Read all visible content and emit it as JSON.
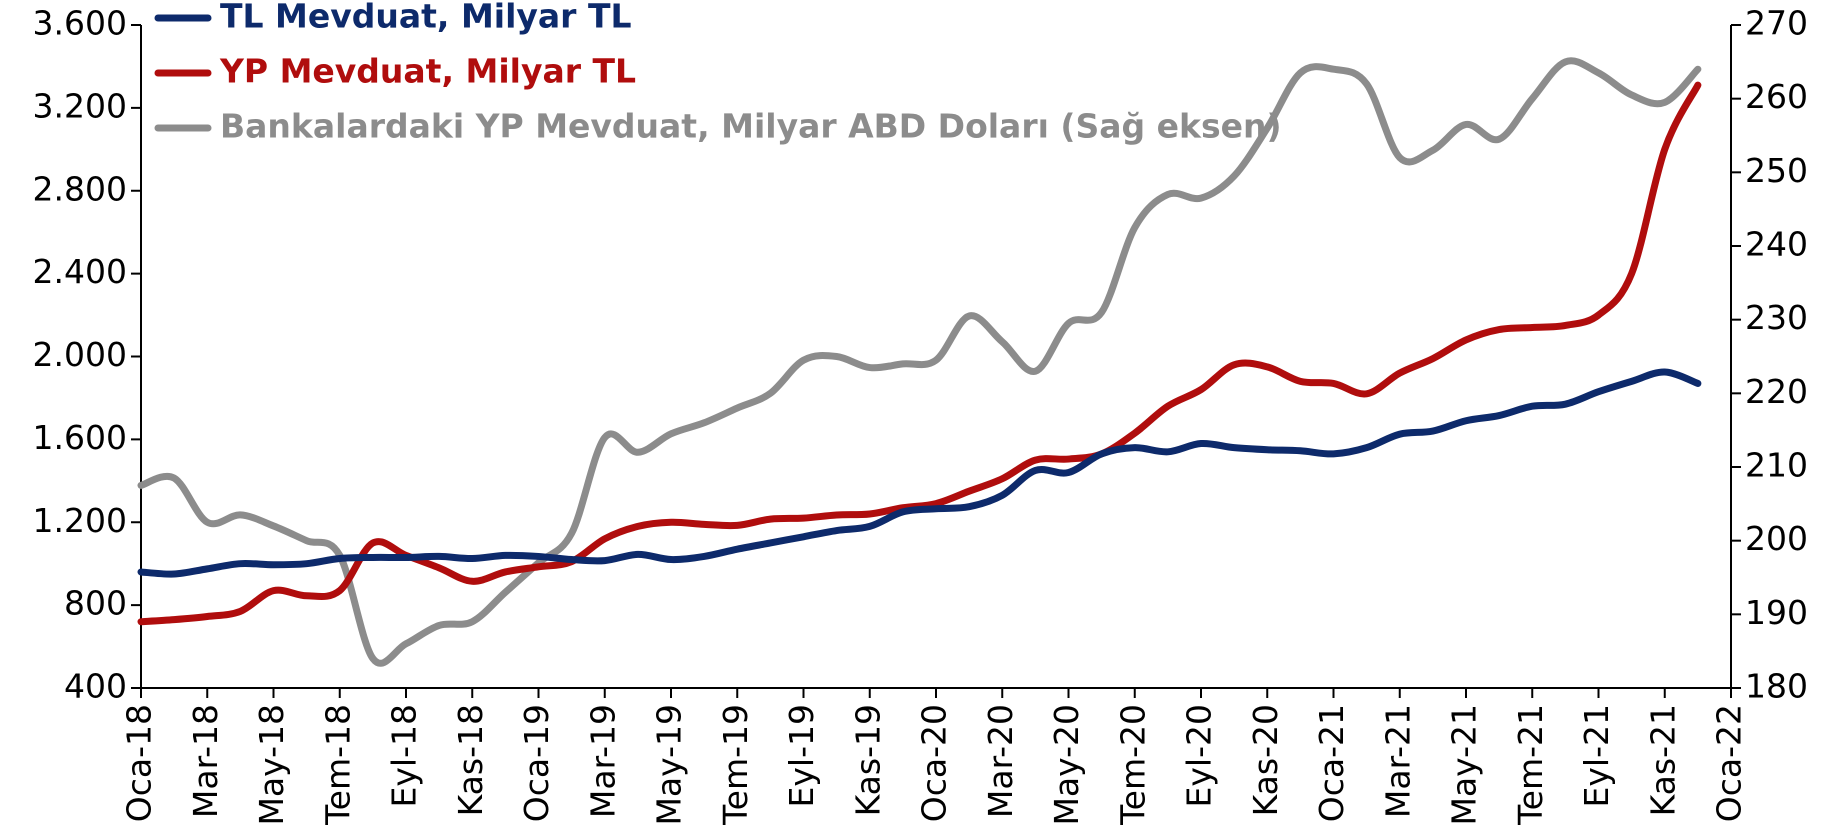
{
  "chart_data": {
    "type": "line",
    "categories": [
      "Oca-18",
      null,
      "Mar-18",
      null,
      "May-18",
      null,
      "Tem-18",
      null,
      "Eyl-18",
      null,
      "Kas-18",
      null,
      "Oca-19",
      null,
      "Mar-19",
      null,
      "May-19",
      null,
      "Tem-19",
      null,
      "Eyl-19",
      null,
      "Kas-19",
      null,
      "Oca-20",
      null,
      "Mar-20",
      null,
      "May-20",
      null,
      "Tem-20",
      null,
      "Eyl-20",
      null,
      "Kas-20",
      null,
      "Oca-21",
      null,
      "Mar-21",
      null,
      "May-21",
      null,
      "Tem-21",
      null,
      "Eyl-21",
      null,
      "Kas-21",
      null,
      "Oca-22"
    ],
    "series": [
      {
        "name": "TL Mevduat, Milyar TL",
        "color": "#0d2a6b",
        "values": [
          960,
          950,
          975,
          1000,
          995,
          1000,
          1025,
          1030,
          1030,
          1035,
          1025,
          1040,
          1035,
          1020,
          1015,
          1045,
          1020,
          1035,
          1070,
          1100,
          1130,
          1160,
          1180,
          1250,
          1265,
          1275,
          1330,
          1450,
          1440,
          1530,
          1560,
          1540,
          1580,
          1560,
          1550,
          1545,
          1530,
          1560,
          1625,
          1640,
          1690,
          1715,
          1760,
          1770,
          1830,
          1880,
          1925,
          1870,
          null
        ]
      },
      {
        "name": "YP Mevduat, Milyar TL",
        "color": "#b00d0d",
        "values": [
          720,
          730,
          745,
          770,
          870,
          845,
          870,
          1100,
          1040,
          980,
          915,
          960,
          985,
          1010,
          1120,
          1180,
          1200,
          1190,
          1185,
          1215,
          1220,
          1235,
          1240,
          1270,
          1290,
          1350,
          1410,
          1500,
          1505,
          1530,
          1630,
          1760,
          1840,
          1960,
          1950,
          1880,
          1870,
          1820,
          1920,
          1990,
          2080,
          2130,
          2140,
          2150,
          2200,
          2400,
          3000,
          3310,
          null
        ]
      },
      {
        "name": "Bankalardaki YP Mevduat, Milyar ABD Doları (Sağ eksen)",
        "color": "#8c8c8c",
        "axis": "y2",
        "values": [
          207.5,
          208.5,
          202.5,
          203.5,
          202,
          200,
          198,
          184,
          186,
          188.5,
          189,
          193,
          197,
          201,
          214,
          212,
          214.5,
          216,
          218,
          220,
          224.5,
          225,
          223.5,
          224,
          224.5,
          230.5,
          227,
          223,
          229.5,
          231,
          242.5,
          247,
          246.5,
          249.5,
          256,
          263.5,
          264,
          262,
          252,
          253,
          256.5,
          254.5,
          260,
          265,
          263.5,
          260.5,
          259.5,
          264,
          null
        ]
      }
    ],
    "ylim": [
      400,
      3600
    ],
    "yticks": [
      400,
      800,
      {
        "value": 1200,
        "label": "1.200"
      },
      {
        "value": 1600,
        "label": "1.600"
      },
      {
        "value": 2000,
        "label": "2.000"
      },
      {
        "value": 2400,
        "label": "2.400"
      },
      {
        "value": 2800,
        "label": "2.800"
      },
      {
        "value": 3200,
        "label": "3.200"
      },
      {
        "value": 3600,
        "label": "3.600"
      }
    ],
    "y2lim": [
      180,
      270
    ],
    "y2ticks": [
      180,
      190,
      200,
      210,
      220,
      230,
      240,
      250,
      260,
      270
    ],
    "legend": "top-left"
  }
}
